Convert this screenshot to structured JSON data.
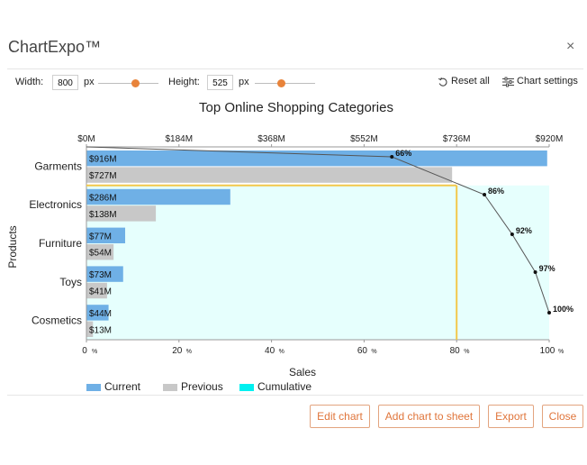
{
  "app": {
    "title": "ChartExpo™",
    "close_symbol": "×"
  },
  "controls": {
    "width_label": "Width:",
    "width_value": "800",
    "width_unit": "px",
    "height_label": "Height:",
    "height_value": "525",
    "height_unit": "px",
    "reset_label": "Reset all",
    "settings_label": "Chart settings"
  },
  "buttons": {
    "edit_chart": "Edit chart",
    "add_to_sheet": "Add chart to sheet",
    "export": "Export",
    "close": "Close"
  },
  "colors": {
    "current": "#6fb0e6",
    "previous": "#c8c8c8",
    "cumulative": "#e6fffd",
    "cumulative_legend": "#00f0f0",
    "marker": "#f2c84b",
    "accent": "#e0753b"
  },
  "chart_data": {
    "type": "bar",
    "title": "Top Online Shopping Categories",
    "xlabel": "Sales",
    "ylabel": "Products",
    "categories": [
      "Garments",
      "Electronics",
      "Furniture",
      "Toys",
      "Cosmetics"
    ],
    "series": [
      {
        "name": "Current",
        "values": [
          916,
          286,
          77,
          73,
          44
        ],
        "labels": [
          "$916M",
          "$286M",
          "$77M",
          "$73M",
          "$44M"
        ]
      },
      {
        "name": "Previous",
        "values": [
          727,
          138,
          54,
          41,
          13
        ],
        "labels": [
          "$727M",
          "$138M",
          "$54M",
          "$41M",
          "$13M"
        ]
      },
      {
        "name": "Cumulative",
        "values": [
          66,
          86,
          92,
          97,
          100
        ],
        "labels": [
          "66%",
          "86%",
          "92%",
          "97%",
          "100%"
        ]
      }
    ],
    "top_axis": {
      "ticks": [
        0,
        184,
        368,
        552,
        736,
        920
      ],
      "tick_labels": [
        "$0M",
        "$184M",
        "$368M",
        "$552M",
        "$736M",
        "$920M"
      ],
      "range": [
        0,
        920
      ]
    },
    "bottom_axis": {
      "ticks": [
        0,
        20,
        40,
        60,
        80,
        100
      ],
      "tick_labels": [
        "0",
        "20",
        "40",
        "60",
        "80",
        "100"
      ],
      "suffix": "%",
      "range": [
        0,
        100
      ]
    },
    "threshold_percent": 80,
    "legend_position": "bottom-left"
  }
}
